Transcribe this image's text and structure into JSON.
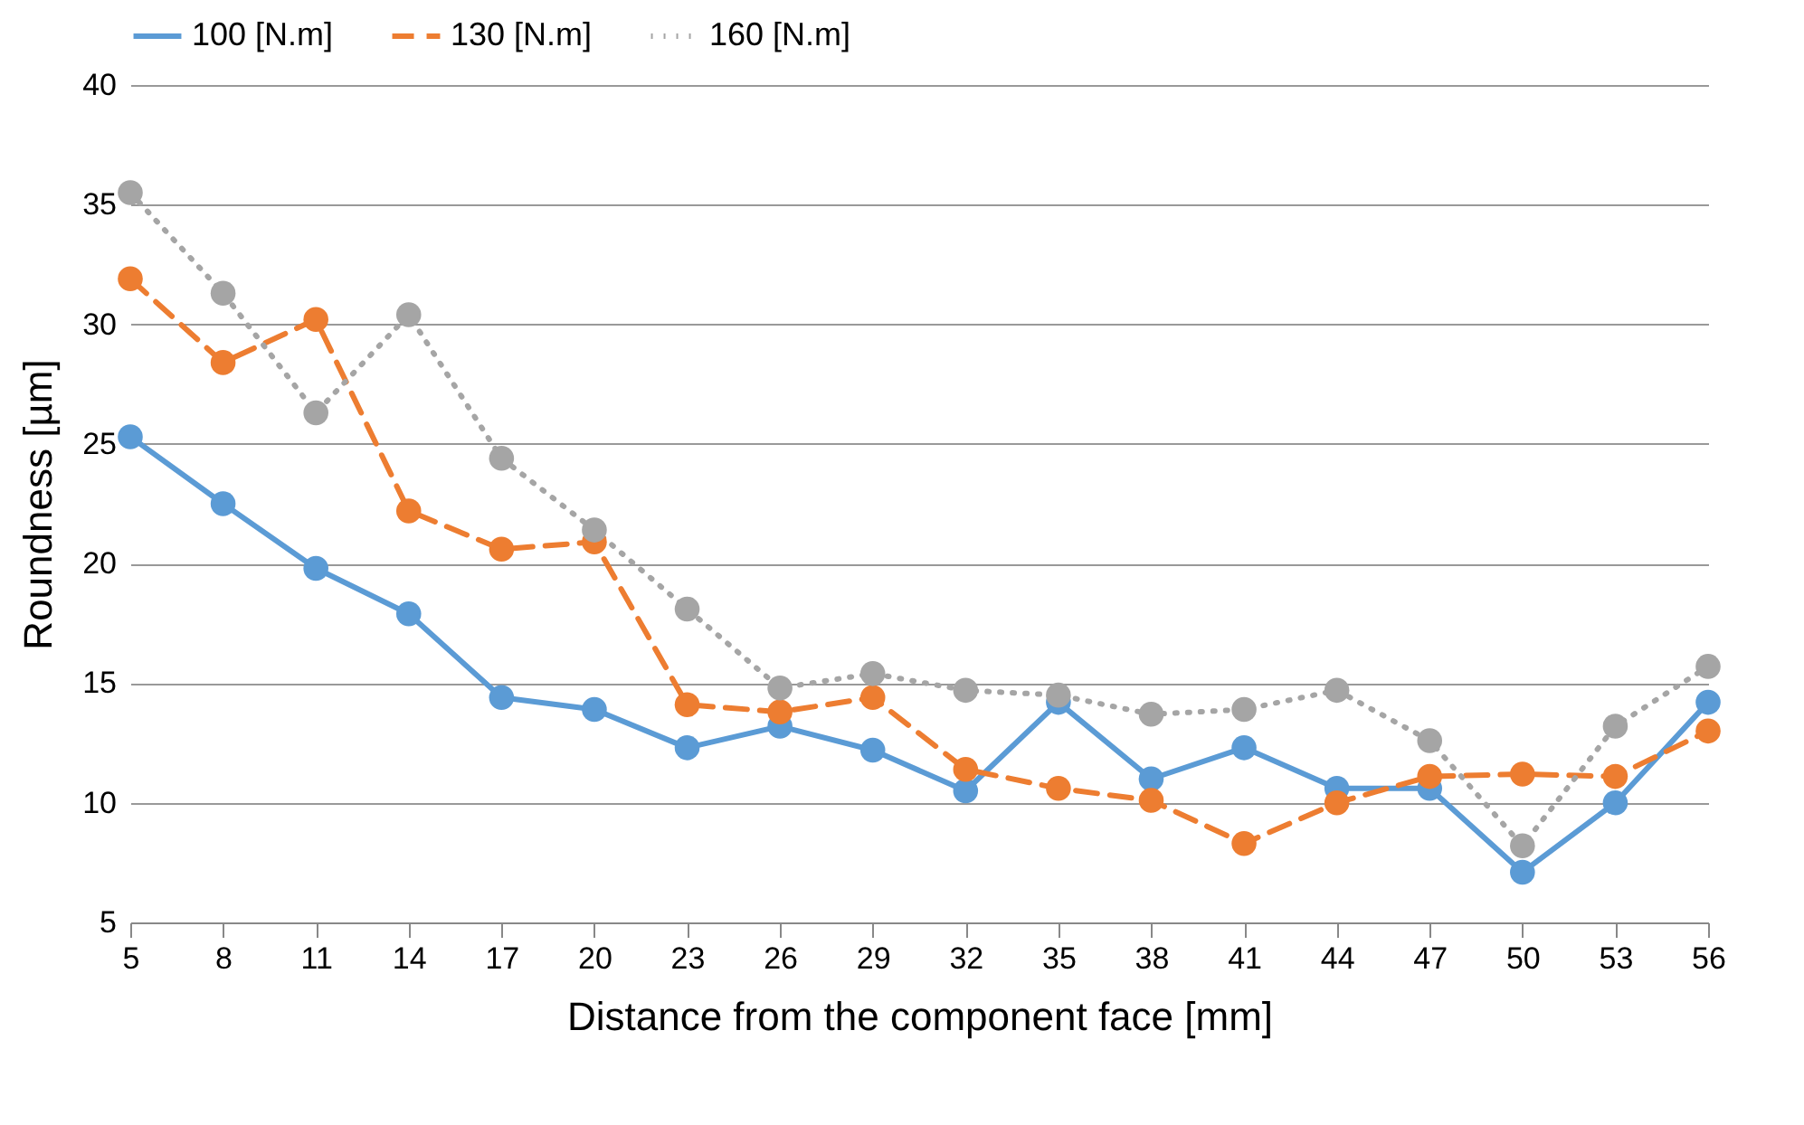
{
  "chart_data": {
    "type": "line",
    "xlabel": "Distance from the component face [mm]",
    "ylabel": "Roundness [µm]",
    "categories": [
      "5",
      "8",
      "11",
      "14",
      "17",
      "20",
      "23",
      "26",
      "29",
      "32",
      "35",
      "38",
      "41",
      "44",
      "47",
      "50",
      "53",
      "56"
    ],
    "ylim": [
      5,
      40
    ],
    "yticks": [
      5,
      10,
      15,
      20,
      25,
      30,
      35,
      40
    ],
    "grid": "y",
    "legend": "top",
    "marker": "circle",
    "series": [
      {
        "name": "100 [N.m]",
        "color": "#5b9bd5",
        "line_style": "solid",
        "values": [
          25.3,
          22.5,
          19.8,
          17.9,
          14.4,
          13.9,
          12.3,
          13.2,
          12.2,
          10.5,
          14.2,
          11.0,
          12.3,
          10.6,
          10.6,
          7.1,
          10.0,
          14.2
        ]
      },
      {
        "name": "130 [N.m]",
        "color": "#ed7d31",
        "line_style": "dashed",
        "values": [
          31.9,
          28.4,
          30.2,
          22.2,
          20.6,
          20.9,
          14.1,
          13.8,
          14.4,
          11.4,
          10.6,
          10.1,
          8.3,
          10.0,
          11.1,
          11.2,
          11.1,
          13.0
        ]
      },
      {
        "name": "160 [N.m]",
        "color": "#a5a5a5",
        "line_style": "dotted",
        "values": [
          35.5,
          31.3,
          26.3,
          30.4,
          24.4,
          21.4,
          18.1,
          14.8,
          15.4,
          14.7,
          14.5,
          13.7,
          13.9,
          14.7,
          12.6,
          8.2,
          13.2,
          15.7
        ]
      }
    ]
  }
}
